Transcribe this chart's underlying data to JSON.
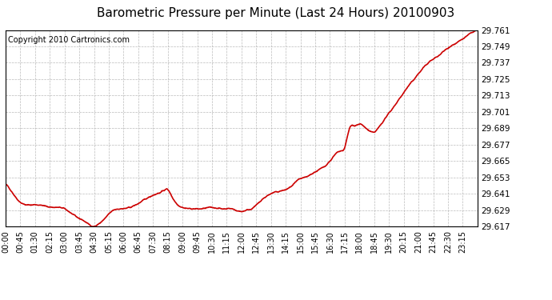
{
  "title": "Barometric Pressure per Minute (Last 24 Hours) 20100903",
  "copyright": "Copyright 2010 Cartronics.com",
  "line_color": "#cc0000",
  "background_color": "#ffffff",
  "plot_bg_color": "#ffffff",
  "grid_color": "#aaaaaa",
  "border_color": "#000000",
  "ylim": [
    29.617,
    29.761
  ],
  "yticks": [
    29.617,
    29.629,
    29.641,
    29.653,
    29.665,
    29.677,
    29.689,
    29.701,
    29.713,
    29.725,
    29.737,
    29.749,
    29.761
  ],
  "xtick_labels": [
    "00:00",
    "00:45",
    "01:30",
    "02:15",
    "03:00",
    "03:45",
    "04:30",
    "05:15",
    "06:00",
    "06:45",
    "07:30",
    "08:15",
    "09:00",
    "09:45",
    "10:30",
    "11:15",
    "12:00",
    "12:45",
    "13:30",
    "14:15",
    "15:00",
    "15:45",
    "16:30",
    "17:15",
    "18:00",
    "18:45",
    "19:30",
    "20:15",
    "21:00",
    "21:45",
    "22:30",
    "23:15"
  ],
  "title_fontsize": 11,
  "copyright_fontsize": 7,
  "tick_fontsize": 7,
  "ytick_fontsize": 7.5,
  "line_width": 1.2,
  "control_x": [
    0,
    0.3,
    0.6,
    1.0,
    1.5,
    2.0,
    2.5,
    3.0,
    3.5,
    4.0,
    4.3,
    4.5,
    4.75,
    5.0,
    5.25,
    5.5,
    6.0,
    6.5,
    7.0,
    7.5,
    8.0,
    8.25,
    8.5,
    9.0,
    9.5,
    10.0,
    10.5,
    11.0,
    11.5,
    12.0,
    12.25,
    12.5,
    13.0,
    13.5,
    14.0,
    14.5,
    15.0,
    15.25,
    15.5,
    15.75,
    16.0,
    16.5,
    17.0,
    17.25,
    17.5,
    17.75,
    18.0,
    18.25,
    18.5,
    18.75,
    19.0,
    19.5,
    20.0,
    20.5,
    21.0,
    21.5,
    22.0,
    22.5,
    23.0,
    23.5,
    24.0
  ],
  "control_y": [
    29.648,
    29.643,
    29.637,
    29.633,
    29.633,
    29.632,
    29.631,
    29.63,
    29.625,
    29.621,
    29.618,
    29.617,
    29.619,
    29.622,
    29.626,
    29.629,
    29.63,
    29.632,
    29.636,
    29.64,
    29.643,
    29.644,
    29.638,
    29.631,
    29.63,
    29.63,
    29.631,
    29.63,
    29.63,
    29.628,
    29.629,
    29.63,
    29.636,
    29.641,
    29.643,
    29.646,
    29.652,
    29.653,
    29.655,
    29.657,
    29.659,
    29.665,
    29.672,
    29.675,
    29.689,
    29.691,
    29.692,
    29.69,
    29.687,
    29.686,
    29.69,
    29.7,
    29.71,
    29.72,
    29.729,
    29.737,
    29.742,
    29.748,
    29.752,
    29.757,
    29.761
  ]
}
